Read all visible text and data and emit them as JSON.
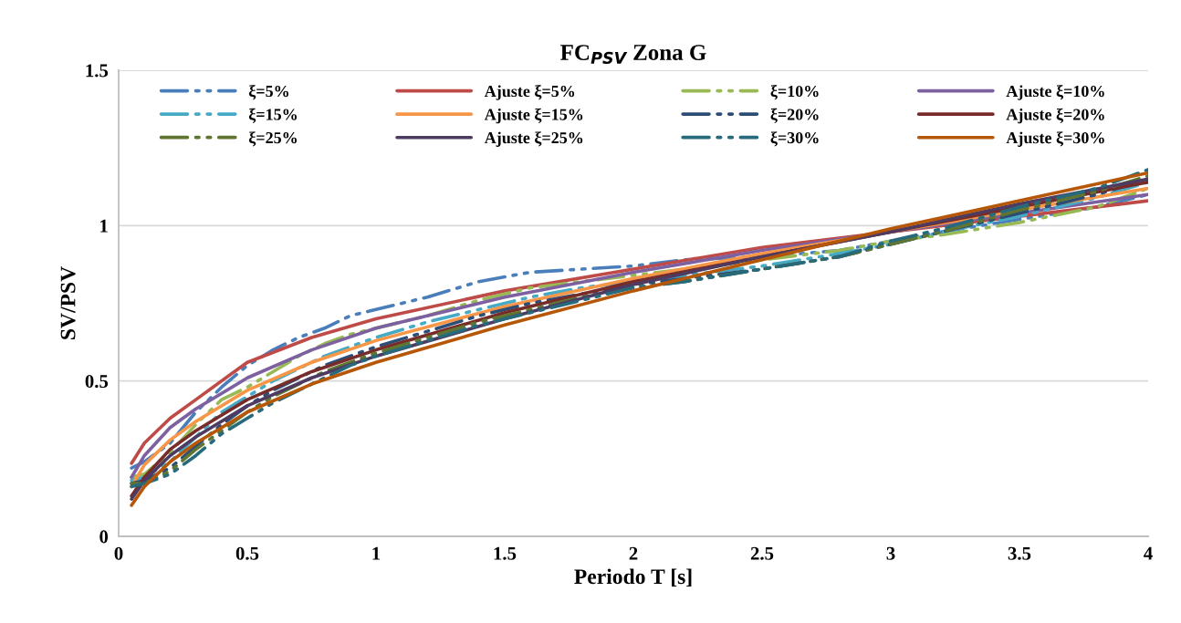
{
  "chart_data": {
    "type": "line",
    "title": "FC$_{PSV}$ Zona G",
    "xlabel": "Periodo T [s]",
    "ylabel": "SV/PSV",
    "xlim": [
      0,
      4
    ],
    "xticks": [
      0,
      0.5,
      1,
      1.5,
      2,
      2.5,
      3,
      3.5,
      4
    ],
    "ylim": [
      0,
      1.5
    ],
    "yticks": [
      0,
      0.5,
      1,
      1.5
    ],
    "grid": "y",
    "legend": "top",
    "series": [
      {
        "name": "ξ=5%",
        "color": "#4a7ebb",
        "line_style": "dashed",
        "x": [
          0.05,
          0.1,
          0.2,
          0.3,
          0.4,
          0.5,
          0.6,
          0.7,
          0.8,
          0.9,
          1.0,
          1.2,
          1.4,
          1.6,
          1.8,
          2.0,
          2.2,
          2.5,
          2.8,
          3.0,
          3.2,
          3.5,
          3.8,
          4
        ],
        "values": [
          0.22,
          0.24,
          0.3,
          0.4,
          0.48,
          0.55,
          0.6,
          0.64,
          0.67,
          0.71,
          0.73,
          0.77,
          0.82,
          0.85,
          0.86,
          0.87,
          0.89,
          0.9,
          0.92,
          0.95,
          0.98,
          1.02,
          1.06,
          1.1
        ]
      },
      {
        "name": "Ajuste ξ=5%",
        "color": "#be4b48",
        "line_style": "solid",
        "x": [
          0.05,
          0.1,
          0.2,
          0.3,
          0.5,
          0.75,
          1,
          1.5,
          2,
          2.5,
          3,
          3.5,
          4
        ],
        "values": [
          0.235,
          0.3,
          0.38,
          0.44,
          0.56,
          0.64,
          0.7,
          0.79,
          0.86,
          0.93,
          0.98,
          1.03,
          1.08
        ]
      },
      {
        "name": "ξ=10%",
        "color": "#98b954",
        "line_style": "dashed",
        "x": [
          0.05,
          0.1,
          0.2,
          0.3,
          0.4,
          0.5,
          0.6,
          0.7,
          0.8,
          0.9,
          1.0,
          1.2,
          1.4,
          1.6,
          1.8,
          2.0,
          2.2,
          2.5,
          2.8,
          3.0,
          3.2,
          3.5,
          3.8,
          4
        ],
        "values": [
          0.19,
          0.2,
          0.27,
          0.36,
          0.44,
          0.48,
          0.53,
          0.58,
          0.62,
          0.65,
          0.67,
          0.71,
          0.76,
          0.8,
          0.82,
          0.84,
          0.86,
          0.89,
          0.92,
          0.95,
          0.97,
          1.01,
          1.06,
          1.12
        ]
      },
      {
        "name": "Ajuste ξ=10%",
        "color": "#7d60a0",
        "line_style": "solid",
        "x": [
          0.05,
          0.1,
          0.2,
          0.3,
          0.5,
          0.75,
          1,
          1.5,
          2,
          2.5,
          3,
          3.5,
          4
        ],
        "values": [
          0.19,
          0.26,
          0.35,
          0.41,
          0.51,
          0.6,
          0.67,
          0.77,
          0.85,
          0.92,
          0.98,
          1.04,
          1.1
        ]
      },
      {
        "name": "ξ=15%",
        "color": "#46aac5",
        "line_style": "dashed",
        "x": [
          0.05,
          0.1,
          0.2,
          0.3,
          0.4,
          0.5,
          0.6,
          0.7,
          0.8,
          0.9,
          1.0,
          1.2,
          1.4,
          1.6,
          1.8,
          2.0,
          2.2,
          2.5,
          2.8,
          3.0,
          3.2,
          3.5,
          3.8,
          4
        ],
        "values": [
          0.18,
          0.19,
          0.24,
          0.32,
          0.4,
          0.45,
          0.5,
          0.54,
          0.58,
          0.61,
          0.64,
          0.69,
          0.73,
          0.77,
          0.8,
          0.82,
          0.84,
          0.87,
          0.91,
          0.94,
          0.98,
          1.03,
          1.09,
          1.14
        ]
      },
      {
        "name": "Ajuste ξ=15%",
        "color": "#f79646",
        "line_style": "solid",
        "x": [
          0.05,
          0.1,
          0.2,
          0.3,
          0.5,
          0.75,
          1,
          1.5,
          2,
          2.5,
          3,
          3.5,
          4
        ],
        "values": [
          0.16,
          0.23,
          0.31,
          0.37,
          0.47,
          0.56,
          0.63,
          0.74,
          0.83,
          0.91,
          0.98,
          1.05,
          1.12
        ]
      },
      {
        "name": "ξ=20%",
        "color": "#2c4d75",
        "line_style": "dashed",
        "x": [
          0.05,
          0.1,
          0.2,
          0.3,
          0.4,
          0.5,
          0.6,
          0.7,
          0.8,
          0.9,
          1.0,
          1.2,
          1.4,
          1.6,
          1.8,
          2.0,
          2.2,
          2.5,
          2.8,
          3.0,
          3.2,
          3.5,
          3.8,
          4
        ],
        "values": [
          0.17,
          0.18,
          0.22,
          0.29,
          0.36,
          0.42,
          0.47,
          0.51,
          0.55,
          0.58,
          0.61,
          0.66,
          0.71,
          0.75,
          0.78,
          0.81,
          0.83,
          0.86,
          0.9,
          0.94,
          0.98,
          1.04,
          1.1,
          1.15
        ]
      },
      {
        "name": "Ajuste ξ=20%",
        "color": "#772c2a",
        "line_style": "solid",
        "x": [
          0.05,
          0.1,
          0.2,
          0.3,
          0.5,
          0.75,
          1,
          1.5,
          2,
          2.5,
          3,
          3.5,
          4
        ],
        "values": [
          0.13,
          0.19,
          0.28,
          0.34,
          0.44,
          0.53,
          0.6,
          0.72,
          0.82,
          0.9,
          0.98,
          1.06,
          1.14
        ]
      },
      {
        "name": "ξ=25%",
        "color": "#5f7530",
        "line_style": "dashed",
        "x": [
          0.05,
          0.1,
          0.2,
          0.3,
          0.4,
          0.5,
          0.6,
          0.7,
          0.8,
          0.9,
          1.0,
          1.2,
          1.4,
          1.6,
          1.8,
          2.0,
          2.2,
          2.5,
          2.8,
          3.0,
          3.2,
          3.5,
          3.8,
          4
        ],
        "values": [
          0.17,
          0.17,
          0.21,
          0.28,
          0.34,
          0.4,
          0.45,
          0.49,
          0.53,
          0.56,
          0.59,
          0.64,
          0.69,
          0.73,
          0.77,
          0.8,
          0.82,
          0.86,
          0.9,
          0.94,
          0.98,
          1.05,
          1.11,
          1.16
        ]
      },
      {
        "name": "Ajuste ξ=25%",
        "color": "#4d3b62",
        "line_style": "solid",
        "x": [
          0.05,
          0.1,
          0.2,
          0.3,
          0.5,
          0.75,
          1,
          1.5,
          2,
          2.5,
          3,
          3.5,
          4
        ],
        "values": [
          0.12,
          0.18,
          0.26,
          0.32,
          0.42,
          0.51,
          0.58,
          0.7,
          0.81,
          0.9,
          0.98,
          1.07,
          1.15
        ]
      },
      {
        "name": "ξ=30%",
        "color": "#276a7c",
        "line_style": "dashed",
        "x": [
          0.05,
          0.1,
          0.2,
          0.3,
          0.4,
          0.5,
          0.6,
          0.7,
          0.8,
          0.9,
          1.0,
          1.2,
          1.4,
          1.6,
          1.8,
          2.0,
          2.2,
          2.5,
          2.8,
          3.0,
          3.2,
          3.5,
          3.8,
          4
        ],
        "values": [
          0.16,
          0.17,
          0.2,
          0.26,
          0.33,
          0.38,
          0.43,
          0.47,
          0.51,
          0.55,
          0.58,
          0.63,
          0.68,
          0.72,
          0.76,
          0.8,
          0.82,
          0.86,
          0.9,
          0.95,
          0.99,
          1.06,
          1.12,
          1.18
        ]
      },
      {
        "name": "Ajuste ξ=30%",
        "color": "#b65708",
        "line_style": "solid",
        "x": [
          0.05,
          0.1,
          0.2,
          0.3,
          0.5,
          0.75,
          1,
          1.5,
          2,
          2.5,
          3,
          3.5,
          4
        ],
        "values": [
          0.1,
          0.16,
          0.24,
          0.3,
          0.4,
          0.49,
          0.56,
          0.68,
          0.79,
          0.89,
          0.99,
          1.08,
          1.17
        ]
      }
    ]
  }
}
